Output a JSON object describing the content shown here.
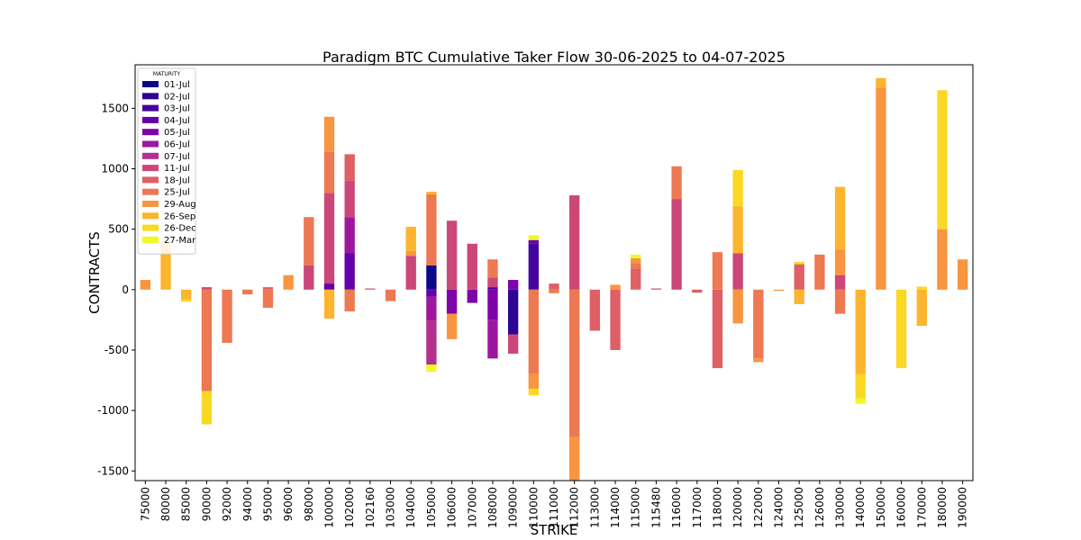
{
  "chart_data": {
    "type": "bar",
    "stacked": true,
    "title": "Paradigm BTC Cumulative Taker Flow 30-06-2025 to 04-07-2025",
    "xlabel": "STRIKE",
    "ylabel": "CONTRACTS",
    "ylim": [
      -1580,
      1860
    ],
    "yticks": [
      -1500,
      -1000,
      -500,
      0,
      500,
      1000,
      1500
    ],
    "legend_title": "MATURITY",
    "legend_position": "upper-left",
    "grid": false,
    "categories": [
      "75000",
      "80000",
      "85000",
      "90000",
      "92000",
      "94000",
      "95000",
      "96000",
      "98000",
      "100000",
      "102000",
      "102160",
      "103000",
      "104000",
      "105000",
      "106000",
      "107000",
      "108000",
      "109000",
      "110000",
      "111000",
      "112000",
      "113000",
      "114000",
      "115000",
      "115480",
      "116000",
      "117000",
      "118000",
      "120000",
      "122000",
      "124000",
      "125000",
      "126000",
      "130000",
      "140000",
      "150000",
      "160000",
      "170000",
      "180000",
      "190000"
    ],
    "series": [
      {
        "name": "01-Jul",
        "color": "#0d0887",
        "values": [
          0,
          0,
          0,
          0,
          0,
          0,
          0,
          0,
          0,
          0,
          0,
          0,
          0,
          0,
          200,
          0,
          0,
          0,
          0,
          0,
          0,
          0,
          0,
          0,
          0,
          0,
          0,
          0,
          0,
          0,
          0,
          0,
          0,
          0,
          0,
          0,
          0,
          0,
          0,
          0,
          0
        ]
      },
      {
        "name": "02-Jul",
        "color": "#2c0594",
        "values": [
          0,
          0,
          0,
          0,
          0,
          0,
          0,
          0,
          0,
          0,
          0,
          0,
          0,
          0,
          0,
          0,
          0,
          0,
          -370,
          0,
          0,
          0,
          0,
          0,
          0,
          0,
          0,
          0,
          0,
          0,
          0,
          0,
          0,
          0,
          0,
          0,
          0,
          0,
          0,
          0,
          0
        ]
      },
      {
        "name": "03-Jul",
        "color": "#45039e",
        "values": [
          0,
          0,
          0,
          0,
          0,
          0,
          0,
          0,
          0,
          0,
          0,
          0,
          0,
          0,
          0,
          0,
          0,
          20,
          0,
          380,
          0,
          0,
          0,
          0,
          0,
          0,
          0,
          0,
          0,
          0,
          0,
          0,
          0,
          0,
          0,
          0,
          0,
          0,
          0,
          0,
          0
        ]
      },
      {
        "name": "04-Jul",
        "color": "#6300a7",
        "values": [
          0,
          0,
          0,
          0,
          0,
          0,
          0,
          0,
          0,
          50,
          300,
          0,
          0,
          0,
          -60,
          0,
          0,
          0,
          0,
          30,
          0,
          0,
          0,
          0,
          0,
          0,
          0,
          0,
          0,
          0,
          0,
          0,
          0,
          0,
          0,
          0,
          0,
          0,
          0,
          0,
          0
        ]
      },
      {
        "name": "05-Jul",
        "color": "#7e03a8",
        "values": [
          0,
          0,
          0,
          0,
          0,
          0,
          0,
          0,
          0,
          0,
          0,
          0,
          0,
          0,
          0,
          -200,
          -110,
          -250,
          80,
          0,
          0,
          0,
          0,
          0,
          0,
          0,
          0,
          0,
          0,
          0,
          0,
          0,
          0,
          0,
          0,
          0,
          0,
          0,
          0,
          0,
          0
        ]
      },
      {
        "name": "06-Jul",
        "color": "#9c179e",
        "values": [
          0,
          0,
          0,
          0,
          0,
          0,
          0,
          0,
          0,
          0,
          300,
          0,
          0,
          0,
          -200,
          0,
          0,
          -320,
          0,
          0,
          0,
          0,
          0,
          0,
          0,
          0,
          0,
          0,
          0,
          0,
          0,
          0,
          0,
          0,
          0,
          0,
          0,
          0,
          0,
          0,
          0
        ]
      },
      {
        "name": "07-Jul",
        "color": "#b52f8c",
        "values": [
          0,
          0,
          0,
          0,
          0,
          0,
          0,
          0,
          0,
          0,
          0,
          0,
          0,
          0,
          -360,
          0,
          0,
          0,
          0,
          0,
          0,
          0,
          0,
          0,
          0,
          0,
          0,
          0,
          0,
          0,
          0,
          0,
          0,
          0,
          0,
          0,
          0,
          0,
          0,
          0,
          0
        ]
      },
      {
        "name": "11-Jul",
        "color": "#cc4778",
        "values": [
          0,
          0,
          0,
          20,
          0,
          0,
          0,
          0,
          200,
          750,
          300,
          0,
          0,
          280,
          0,
          570,
          380,
          80,
          -160,
          0,
          0,
          780,
          0,
          0,
          0,
          0,
          750,
          0,
          0,
          300,
          0,
          0,
          0,
          0,
          120,
          0,
          0,
          0,
          0,
          0,
          0
        ]
      },
      {
        "name": "18-Jul",
        "color": "#de5f65",
        "values": [
          0,
          0,
          0,
          0,
          0,
          0,
          20,
          0,
          0,
          0,
          220,
          10,
          0,
          0,
          0,
          0,
          0,
          0,
          0,
          0,
          50,
          0,
          -340,
          -500,
          170,
          10,
          0,
          -25,
          -650,
          0,
          0,
          0,
          210,
          0,
          0,
          0,
          0,
          0,
          0,
          0,
          0
        ]
      },
      {
        "name": "25-Jul",
        "color": "#ed7953",
        "values": [
          0,
          0,
          0,
          -840,
          -440,
          -40,
          -150,
          0,
          400,
          340,
          -180,
          0,
          -95,
          0,
          590,
          0,
          0,
          150,
          0,
          -700,
          -30,
          -1220,
          0,
          0,
          50,
          0,
          270,
          0,
          310,
          0,
          -570,
          0,
          0,
          290,
          -200,
          0,
          0,
          0,
          0,
          0,
          0
        ]
      },
      {
        "name": "29-Aug",
        "color": "#f89540",
        "values": [
          80,
          0,
          0,
          0,
          0,
          0,
          0,
          120,
          0,
          290,
          0,
          0,
          0,
          40,
          0,
          -210,
          0,
          0,
          0,
          -120,
          0,
          -365,
          0,
          40,
          40,
          0,
          0,
          0,
          0,
          -280,
          -30,
          -10,
          0,
          0,
          210,
          0,
          1670,
          0,
          0,
          500,
          250
        ]
      },
      {
        "name": "26-Sep",
        "color": "#fdb42f",
        "values": [
          0,
          400,
          -80,
          0,
          0,
          0,
          0,
          0,
          0,
          -240,
          0,
          0,
          0,
          200,
          20,
          0,
          0,
          0,
          0,
          0,
          0,
          0,
          0,
          0,
          0,
          0,
          0,
          0,
          0,
          390,
          0,
          0,
          -120,
          0,
          520,
          -700,
          80,
          0,
          -300,
          0,
          0
        ]
      },
      {
        "name": "26-Dec",
        "color": "#fad824",
        "values": [
          0,
          0,
          -20,
          -275,
          0,
          0,
          0,
          0,
          0,
          0,
          0,
          0,
          0,
          0,
          0,
          0,
          0,
          0,
          0,
          -55,
          0,
          0,
          0,
          0,
          0,
          0,
          0,
          0,
          0,
          300,
          0,
          0,
          20,
          0,
          0,
          -200,
          0,
          -650,
          25,
          1150,
          0
        ]
      },
      {
        "name": "27-Mar",
        "color": "#f0f921",
        "values": [
          0,
          0,
          0,
          0,
          0,
          0,
          0,
          0,
          0,
          0,
          0,
          0,
          0,
          0,
          -60,
          0,
          0,
          0,
          0,
          40,
          0,
          0,
          0,
          0,
          30,
          0,
          0,
          0,
          0,
          0,
          0,
          0,
          0,
          0,
          0,
          -45,
          0,
          0,
          0,
          0,
          0
        ]
      }
    ]
  }
}
